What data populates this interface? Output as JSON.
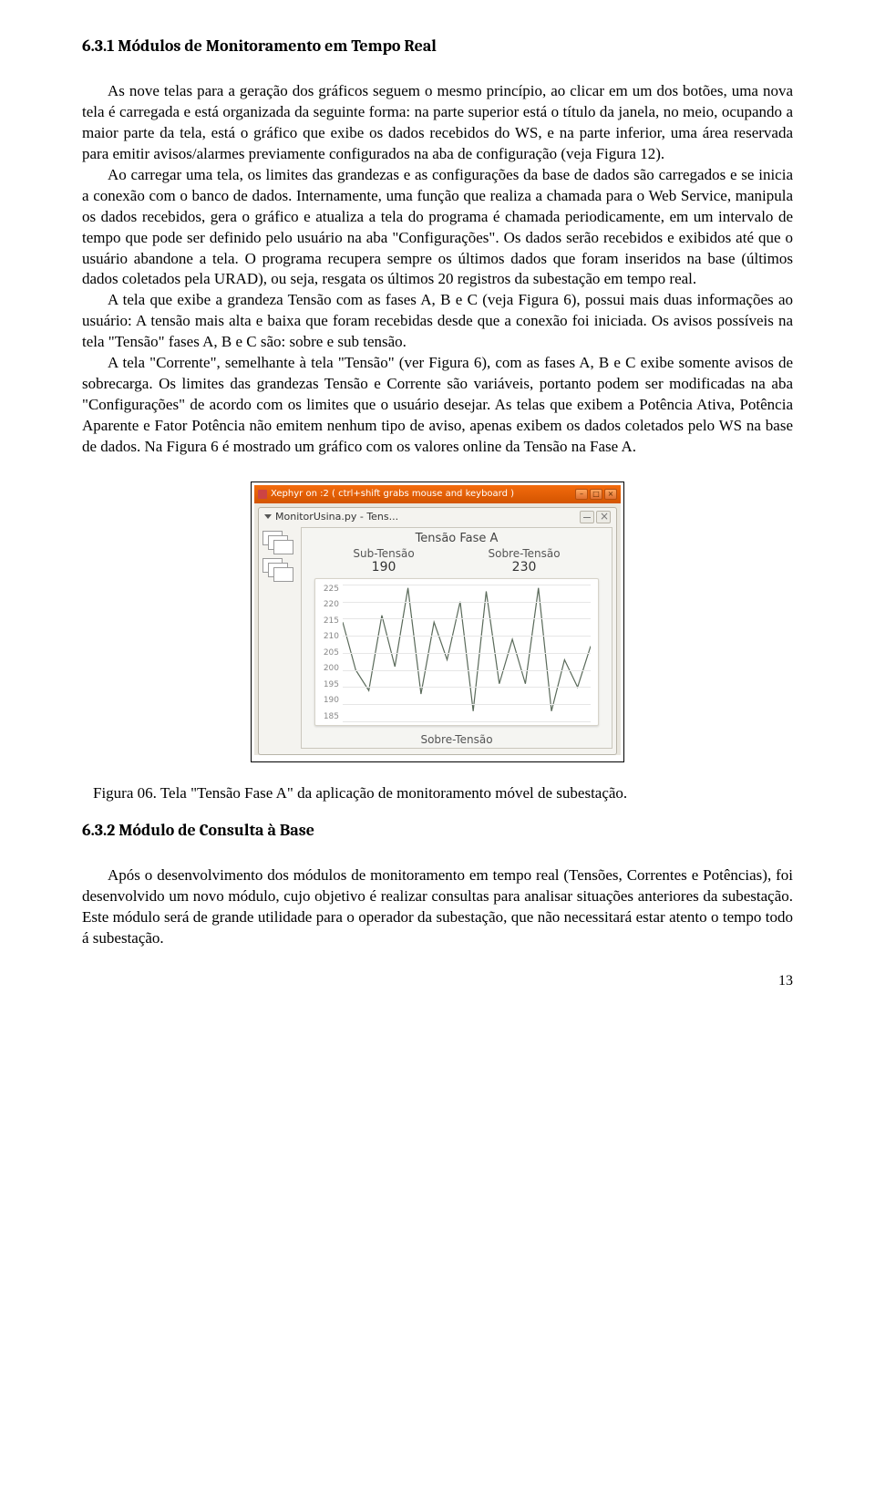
{
  "section1": {
    "heading": "6.3.1   Módulos de Monitoramento em Tempo Real",
    "paragraphs": [
      "As nove telas para a geração dos gráficos seguem o mesmo princípio, ao clicar em um dos botões, uma nova tela é carregada e está organizada da seguinte forma: na parte superior está o título da janela, no meio, ocupando a maior parte da tela, está o gráfico que exibe os dados recebidos do WS, e na parte inferior, uma área reservada para emitir avisos/alarmes previamente configurados na aba de configuração (veja Figura 12).",
      "Ao carregar uma tela, os limites das grandezas e as configurações da base de dados são carregados e se inicia a conexão com o banco de dados. Internamente, uma função que realiza a chamada para o Web Service, manipula os dados recebidos, gera o gráfico e atualiza a tela do programa é chamada periodicamente, em um intervalo de tempo que pode ser definido pelo usuário na aba \"Configurações\". Os dados serão recebidos e exibidos até que o usuário abandone a tela. O programa recupera sempre os últimos dados que foram inseridos na base (últimos dados coletados pela URAD), ou seja, resgata os últimos 20 registros da subestação em tempo real.",
      "A tela que exibe a grandeza Tensão com as fases A, B e C (veja Figura 6), possui mais duas informações ao usuário: A tensão mais alta e baixa que foram recebidas desde que a conexão foi iniciada. Os avisos possíveis na tela \"Tensão\" fases A, B e C são: sobre e sub tensão.",
      "A tela \"Corrente\", semelhante à tela \"Tensão\" (ver Figura 6), com as fases A, B e C exibe somente avisos de sobrecarga. Os limites das grandezas Tensão e Corrente são variáveis, portanto podem ser modificadas na aba \"Configurações\" de acordo com os limites que o usuário desejar. As telas que exibem a Potência Ativa, Potência Aparente e Fator Potência não emitem nenhum tipo de aviso, apenas exibem os dados coletados pelo WS na base de dados. Na Figura 6 é mostrado um gráfico com os valores online da Tensão na Fase A."
    ]
  },
  "figure": {
    "caption": "Figura 06. Tela \"Tensão Fase A\" da aplicação de monitoramento móvel de subestação.",
    "outer_title": "Xephyr on :2 ( ctrl+shift grabs mouse and keyboard )",
    "inner_title": "MonitorUsina.py - Tens...",
    "panel_title": "Tensão Fase A",
    "sub_label": "Sub-Tensão",
    "sub_value": "190",
    "sobre_label": "Sobre-Tensão",
    "sobre_value": "230",
    "status": "Sobre-Tensão",
    "chart": {
      "type": "line",
      "ylim": [
        185,
        225
      ],
      "ytick_step": 5,
      "yticks": [
        "225",
        "220",
        "215",
        "210",
        "205",
        "200",
        "195",
        "190",
        "185"
      ],
      "background_color": "#ffffff",
      "grid_color": "#e6e6e6",
      "line_color": "#5a6a5a",
      "line_width": 1.2,
      "values": [
        214,
        200,
        194,
        216,
        201,
        224,
        193,
        214,
        203,
        220,
        188,
        223,
        196,
        209,
        196,
        224,
        188,
        203,
        195,
        207
      ]
    }
  },
  "section2": {
    "heading": "6.3.2   Módulo de Consulta à Base",
    "paragraphs": [
      "Após o desenvolvimento dos módulos de monitoramento em tempo real (Tensões, Correntes e Potências), foi desenvolvido um novo módulo, cujo objetivo é realizar consultas para analisar situações anteriores da subestação. Este módulo será de grande utilidade para o operador da subestação, que não necessitará estar atento o tempo todo á subestação."
    ]
  },
  "page_number": "13"
}
